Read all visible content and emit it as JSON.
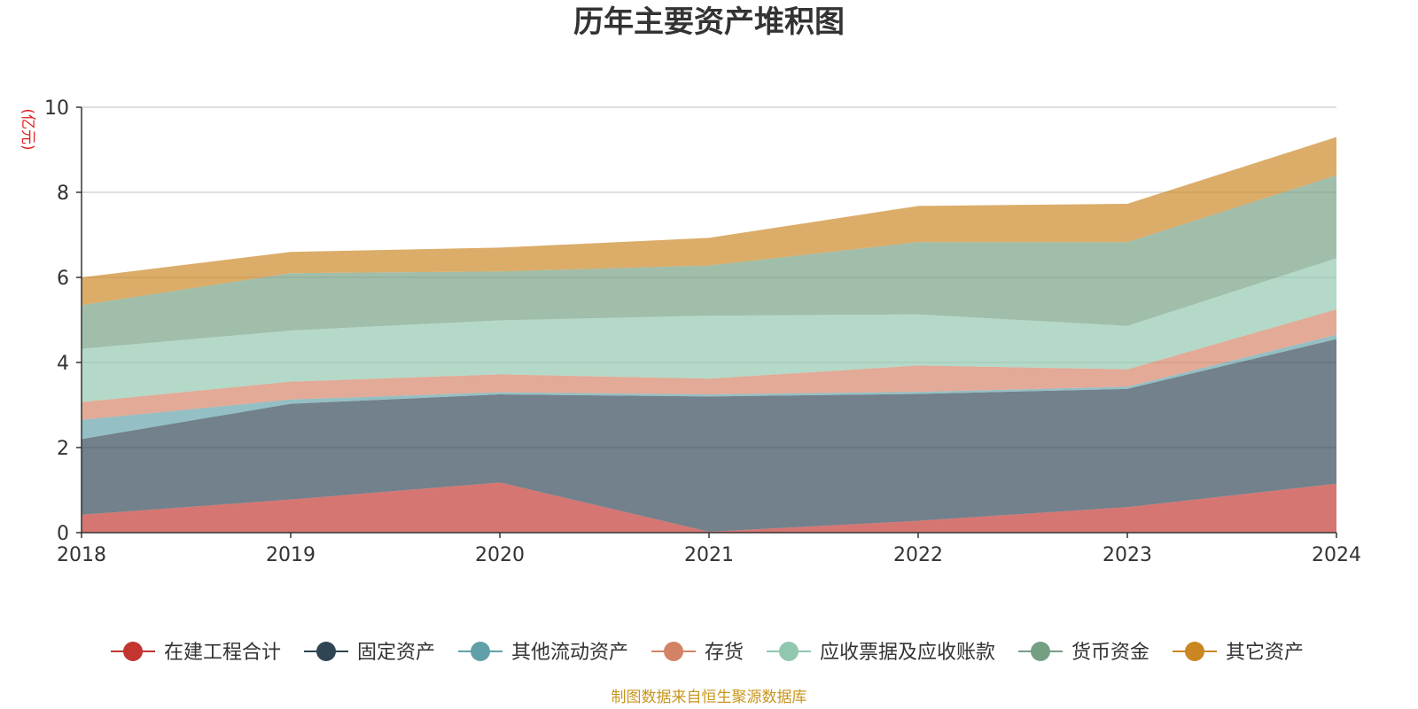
{
  "chart_data": {
    "type": "area",
    "stacked": true,
    "title": "历年主要资产堆积图",
    "unit_label": "(亿元)",
    "source": "制图数据来自恒生聚源数据库",
    "x": [
      "2018",
      "2019",
      "2020",
      "2021",
      "2022",
      "2023",
      "2024"
    ],
    "ylim": [
      0,
      10
    ],
    "yticks": [
      0,
      2,
      4,
      6,
      8,
      10
    ],
    "grid": true,
    "legend_position": "bottom",
    "series": [
      {
        "name": "在建工程合计",
        "color": "#c23531",
        "values": [
          0.42,
          0.78,
          1.18,
          0.02,
          0.28,
          0.6,
          1.15
        ]
      },
      {
        "name": "固定资产",
        "color": "#2f4554",
        "values": [
          1.78,
          2.25,
          2.07,
          3.18,
          2.98,
          2.78,
          3.4
        ]
      },
      {
        "name": "其他流动资产",
        "color": "#61a0a8",
        "values": [
          0.45,
          0.1,
          0.05,
          0.05,
          0.05,
          0.05,
          0.1
        ]
      },
      {
        "name": "存货",
        "color": "#d48265",
        "values": [
          0.42,
          0.42,
          0.42,
          0.37,
          0.62,
          0.41,
          0.6
        ]
      },
      {
        "name": "应收票据及应收账款",
        "color": "#91c7ae",
        "values": [
          1.25,
          1.2,
          1.27,
          1.48,
          1.2,
          1.02,
          1.2
        ]
      },
      {
        "name": "货币资金",
        "color": "#749f83",
        "values": [
          1.03,
          1.35,
          1.15,
          1.18,
          1.7,
          1.97,
          1.95
        ]
      },
      {
        "name": "其它资产",
        "color": "#ca8622",
        "values": [
          0.65,
          0.5,
          0.56,
          0.65,
          0.85,
          0.9,
          0.9
        ]
      }
    ]
  }
}
